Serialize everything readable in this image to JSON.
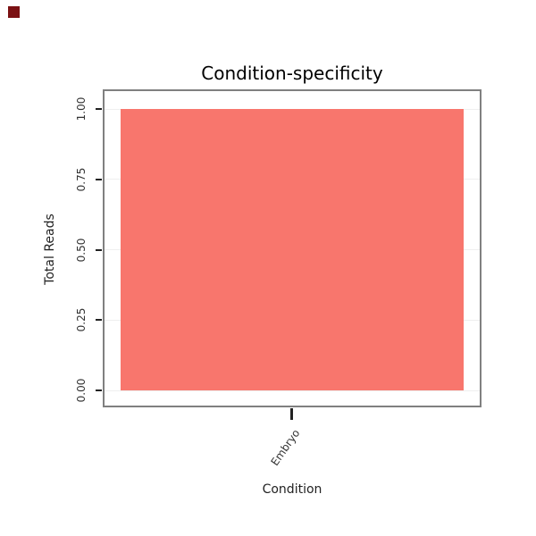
{
  "chart_data": {
    "type": "bar",
    "title": "Condition-specificity",
    "xlabel": "Condition",
    "ylabel": "Total Reads",
    "categories": [
      "Embryo"
    ],
    "values": [
      1.0
    ],
    "ylim": [
      0,
      1.0
    ],
    "yticks": [
      0.0,
      0.25,
      0.5,
      0.75,
      1.0
    ],
    "ytick_labels": [
      "0.00",
      "0.25",
      "0.50",
      "0.75",
      "1.00"
    ],
    "grid": true,
    "legend": "none",
    "bar_color": "#F8766D",
    "panel_border_color": "#808080",
    "background": "#FFFFFF",
    "corner_marker_color": "#7B1113"
  }
}
